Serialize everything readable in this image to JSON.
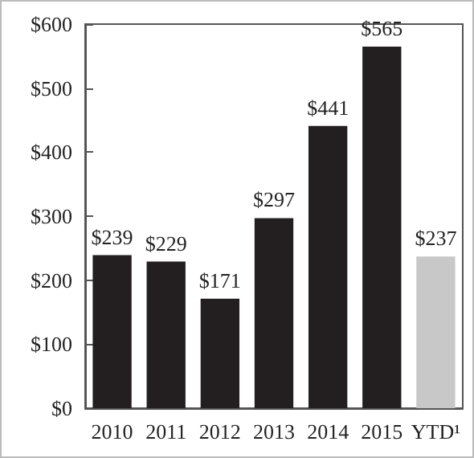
{
  "chart_data": {
    "type": "bar",
    "categories": [
      "2010",
      "2011",
      "2012",
      "2013",
      "2014",
      "2015",
      "YTD¹"
    ],
    "values": [
      239,
      229,
      171,
      297,
      441,
      565,
      237
    ],
    "colors": [
      "#231f20",
      "#231f20",
      "#231f20",
      "#231f20",
      "#231f20",
      "#231f20",
      "#c8c8c8"
    ],
    "value_labels": [
      "$239",
      "$229",
      "$171",
      "$297",
      "$441",
      "$565",
      "$237"
    ],
    "ylim": [
      0,
      600
    ],
    "yticks": [
      {
        "value": 0,
        "label": "$0"
      },
      {
        "value": 100,
        "label": "$100"
      },
      {
        "value": 200,
        "label": "$200"
      },
      {
        "value": 300,
        "label": "$300"
      },
      {
        "value": 400,
        "label": "$400"
      },
      {
        "value": 500,
        "label": "$500"
      },
      {
        "value": 600,
        "label": "$600"
      }
    ],
    "grid": false
  }
}
